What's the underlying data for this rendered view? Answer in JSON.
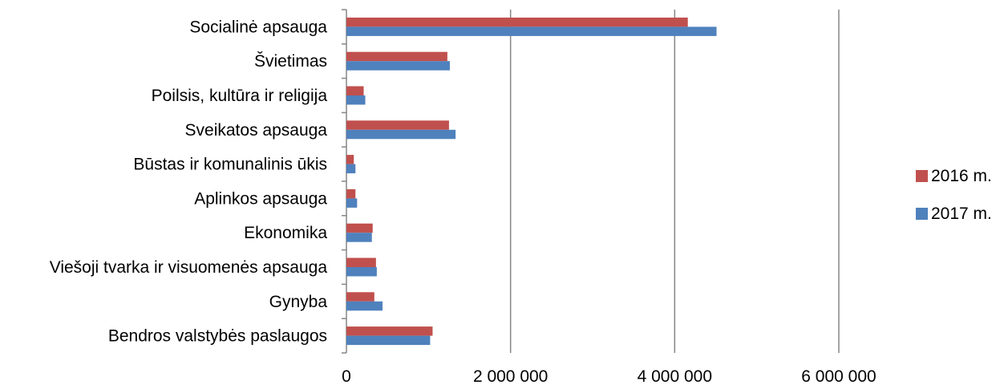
{
  "chart_data": {
    "type": "bar",
    "orientation": "horizontal",
    "categories": [
      "Socialinė apsauga",
      "Švietimas",
      "Poilsis, kultūra ir religija",
      "Sveikatos apsauga",
      "Būstas ir komunalinis ūkis",
      "Aplinkos apsauga",
      "Ekonomika",
      "Viešoji tvarka ir visuomenės apsauga",
      "Gynyba",
      "Bendros valstybės paslaugos"
    ],
    "series": [
      {
        "name": "2016 m.",
        "color": "#C0504D",
        "values": [
          4160000,
          1230000,
          210000,
          1250000,
          90000,
          110000,
          320000,
          360000,
          340000,
          1050000
        ]
      },
      {
        "name": "2017 m.",
        "color": "#4F81BD",
        "values": [
          4510000,
          1260000,
          230000,
          1330000,
          110000,
          130000,
          310000,
          370000,
          440000,
          1020000
        ]
      }
    ],
    "xlim": [
      0,
      6000000
    ],
    "xticks": [
      0,
      2000000,
      4000000,
      6000000
    ],
    "xtick_labels": [
      "0",
      "2 000 000",
      "4 000 000",
      "6 000 000"
    ],
    "grid": "vertical",
    "legend_position": "right",
    "title": "",
    "xlabel": "",
    "ylabel": ""
  }
}
